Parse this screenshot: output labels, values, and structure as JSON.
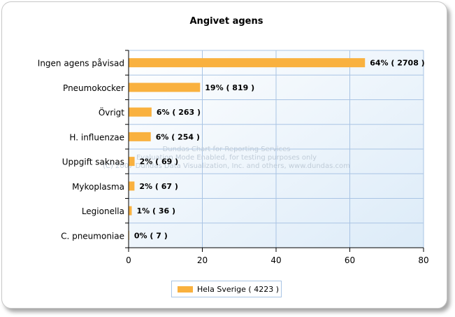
{
  "chart_data": {
    "type": "bar",
    "orientation": "horizontal",
    "title": "Angivet agens",
    "categories": [
      "Ingen agens påvisad",
      "Pneumokocker",
      "Övrigt",
      "H. influenzae",
      "Uppgift saknas",
      "Mykoplasma",
      "Legionella",
      "C. pneumoniae"
    ],
    "series": [
      {
        "name": "Hela Sverige  ( 4223 )",
        "color": "#f9b13f",
        "values": [
          64,
          19,
          6,
          6,
          2,
          2,
          1,
          0
        ],
        "data_labels": [
          "64% ( 2708 )",
          "19% ( 819 )",
          "6% ( 263 )",
          "6% ( 254 )",
          "2% ( 69 )",
          "2% ( 67 )",
          "1% ( 36 )",
          "0% ( 7 )"
        ],
        "precise_values": [
          64.12,
          19.39,
          6.23,
          6.01,
          1.63,
          1.59,
          0.85,
          0.17
        ]
      }
    ],
    "xlim": [
      0,
      80
    ],
    "xticks": [
      0,
      20,
      40,
      60,
      80
    ],
    "grid": true,
    "legend": "bottom-center"
  },
  "watermark": [
    "Dundas Chart for Reporting Services",
    "Evaluation Mode Enabled, for testing purposes only",
    "(C) 2007 Dundas Data Visualization, Inc. and others, www.dundas.com"
  ]
}
